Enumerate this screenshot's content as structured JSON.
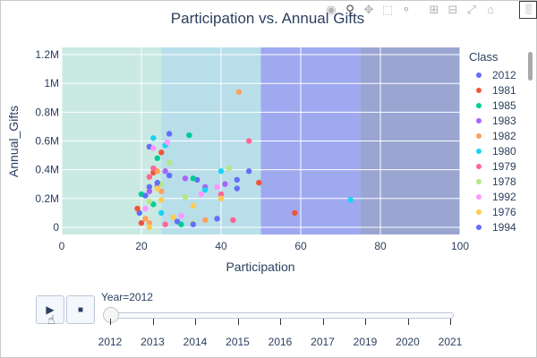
{
  "chart_data": {
    "type": "scatter",
    "title": "Participation vs. Annual Gifts",
    "xlabel": "Participation",
    "ylabel": "Annual_Gifts",
    "xlim": [
      0,
      100
    ],
    "ylim": [
      -50000,
      1250000
    ],
    "x_ticks": [
      "0",
      "20",
      "40",
      "60",
      "80",
      "100"
    ],
    "y_ticks": [
      "0",
      "0.2M",
      "0.4M",
      "0.6M",
      "0.8M",
      "1M",
      "1.2M"
    ],
    "grid": true,
    "bands": [
      {
        "x0": 0,
        "x1": 25,
        "color": "#a8e6c9"
      },
      {
        "x0": 25,
        "x1": 50,
        "color": "#80cfdc"
      },
      {
        "x0": 50,
        "x1": 75,
        "color": "#4a58e8"
      },
      {
        "x0": 75,
        "x1": 100,
        "color": "#3f4fa6"
      }
    ],
    "legend_title": "Class",
    "legend_position": "right",
    "series": [
      {
        "name": "2012",
        "color": "#636efa",
        "points": [
          [
            19.5,
            100000
          ],
          [
            22,
            560000
          ],
          [
            27,
            650000
          ],
          [
            34,
            330000
          ],
          [
            44,
            330000
          ],
          [
            47,
            390000
          ],
          [
            22,
            280000
          ],
          [
            29,
            40000
          ]
        ]
      },
      {
        "name": "1981",
        "color": "#ef553b",
        "points": [
          [
            19,
            130000
          ],
          [
            23,
            380000
          ],
          [
            25,
            520000
          ],
          [
            49.5,
            310000
          ],
          [
            58.5,
            100000
          ],
          [
            43,
            50000
          ],
          [
            20,
            30000
          ]
        ]
      },
      {
        "name": "1985",
        "color": "#00cc96",
        "points": [
          [
            20,
            230000
          ],
          [
            24,
            480000
          ],
          [
            32,
            640000
          ],
          [
            30,
            20000
          ],
          [
            33,
            340000
          ],
          [
            23,
            160000
          ]
        ]
      },
      {
        "name": "1983",
        "color": "#ab63fa",
        "points": [
          [
            22,
            250000
          ],
          [
            24,
            290000
          ],
          [
            31,
            340000
          ],
          [
            36,
            280000
          ],
          [
            41,
            300000
          ],
          [
            26,
            390000
          ]
        ]
      },
      {
        "name": "1982",
        "color": "#ffa15a",
        "points": [
          [
            22,
            30000
          ],
          [
            24,
            390000
          ],
          [
            25,
            250000
          ],
          [
            44.5,
            940000
          ],
          [
            36,
            50000
          ],
          [
            21,
            60000
          ]
        ]
      },
      {
        "name": "1980",
        "color": "#19d3f3",
        "points": [
          [
            23,
            620000
          ],
          [
            26,
            570000
          ],
          [
            40,
            390000
          ],
          [
            72.5,
            190000
          ],
          [
            36,
            260000
          ],
          [
            25,
            100000
          ]
        ]
      },
      {
        "name": "1979",
        "color": "#ff6692",
        "points": [
          [
            22,
            350000
          ],
          [
            23,
            410000
          ],
          [
            47,
            600000
          ],
          [
            43,
            50000
          ],
          [
            40,
            230000
          ],
          [
            26,
            20000
          ]
        ]
      },
      {
        "name": "1978",
        "color": "#b6e880",
        "points": [
          [
            22,
            180000
          ],
          [
            27,
            450000
          ],
          [
            31,
            210000
          ],
          [
            42,
            410000
          ],
          [
            33,
            30000
          ],
          [
            25,
            300000
          ]
        ]
      },
      {
        "name": "1992",
        "color": "#ff97ff",
        "points": [
          [
            23,
            550000
          ],
          [
            26.5,
            590000
          ],
          [
            35,
            230000
          ],
          [
            39,
            280000
          ],
          [
            21,
            130000
          ],
          [
            30,
            80000
          ]
        ]
      },
      {
        "name": "1976",
        "color": "#fecb52",
        "points": [
          [
            24,
            270000
          ],
          [
            25,
            190000
          ],
          [
            28,
            70000
          ],
          [
            40,
            200000
          ],
          [
            22,
            0
          ],
          [
            33,
            150000
          ]
        ]
      },
      {
        "name": "1994",
        "color": "#636efa",
        "points": [
          [
            24,
            310000
          ],
          [
            27,
            360000
          ],
          [
            33,
            20000
          ],
          [
            39,
            60000
          ],
          [
            44,
            270000
          ],
          [
            21,
            220000
          ]
        ]
      }
    ]
  },
  "modebar": {
    "icons": [
      "camera-icon",
      "zoom-icon",
      "pan-icon",
      "box-select-icon",
      "lasso-icon",
      "zoom-in-icon",
      "zoom-out-icon",
      "autoscale-icon",
      "reset-axes-icon",
      "plotly-logo-icon"
    ]
  },
  "controls": {
    "play_glyph": "▶",
    "stop_glyph": "■"
  },
  "slider": {
    "label": "Year=2012",
    "current_index": 0,
    "steps": [
      "2012",
      "2013",
      "2014",
      "2015",
      "2016",
      "2017",
      "2019",
      "2020",
      "2021"
    ]
  }
}
